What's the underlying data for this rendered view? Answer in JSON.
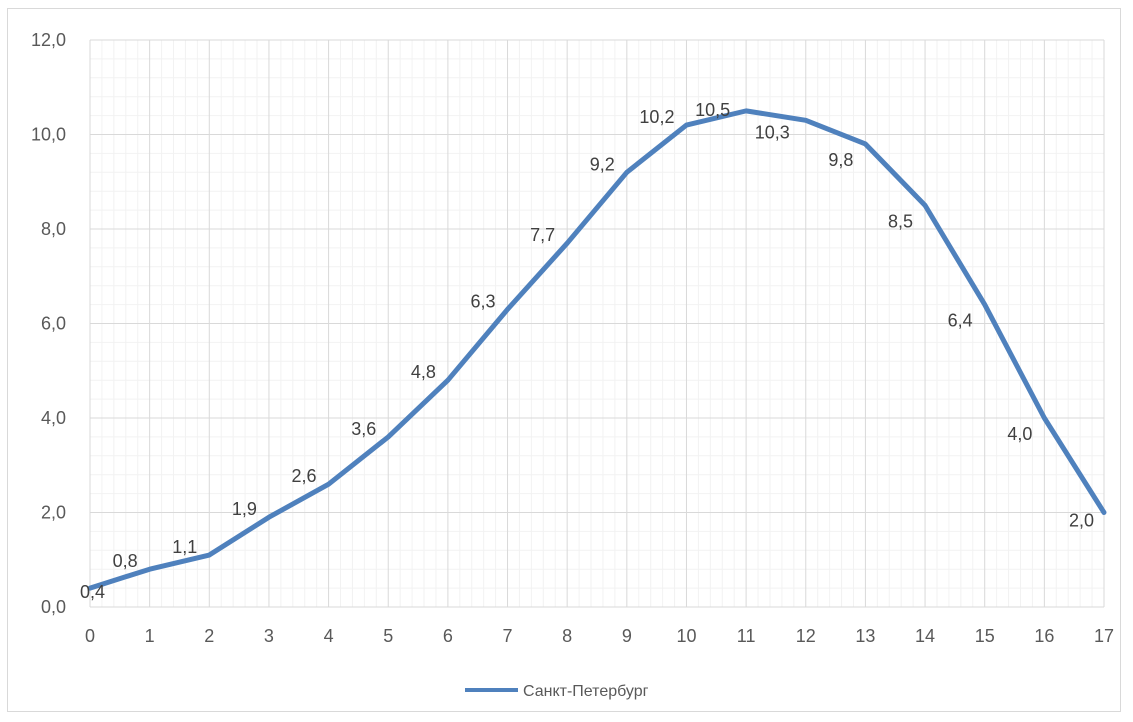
{
  "chart_data": {
    "type": "line",
    "title": "",
    "xlabel": "",
    "ylabel": "",
    "x": [
      0,
      1,
      2,
      3,
      4,
      5,
      6,
      7,
      8,
      9,
      10,
      11,
      12,
      13,
      14,
      15,
      16,
      17
    ],
    "xticks": [
      "0",
      "1",
      "2",
      "3",
      "4",
      "5",
      "6",
      "7",
      "8",
      "9",
      "10",
      "11",
      "12",
      "13",
      "14",
      "15",
      "16",
      "17"
    ],
    "ylim": [
      0,
      12
    ],
    "yticks": [
      "0,0",
      "2,0",
      "4,0",
      "6,0",
      "8,0",
      "10,0",
      "12,0"
    ],
    "grid": "major and minor",
    "legend_position": "bottom",
    "series": [
      {
        "name": "Санкт-Петербург",
        "color": "#4f81bd",
        "values": [
          0.4,
          0.8,
          1.1,
          1.9,
          2.6,
          3.6,
          4.8,
          6.3,
          7.7,
          9.2,
          10.2,
          10.5,
          10.3,
          9.8,
          8.5,
          6.4,
          4.0,
          2.0
        ],
        "labels": [
          "0,4",
          "0,8",
          "1,1",
          "1,9",
          "2,6",
          "3,6",
          "4,8",
          "6,3",
          "7,7",
          "9,2",
          "10,2",
          "10,5",
          "10,3",
          "9,8",
          "8,5",
          "6,4",
          "4,0",
          "2,0"
        ]
      }
    ]
  }
}
